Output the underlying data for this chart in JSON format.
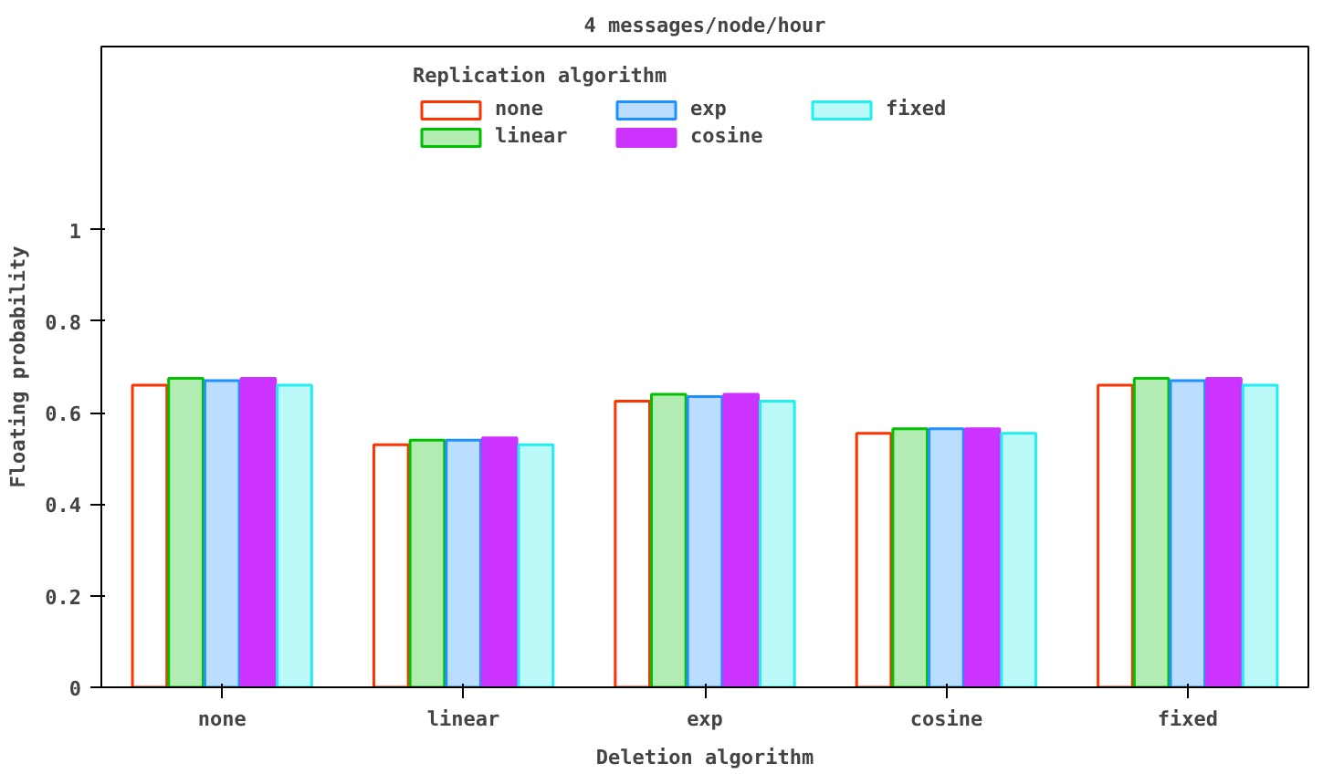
{
  "chart_data": {
    "type": "bar",
    "title": "4 messages/node/hour",
    "xlabel": "Deletion algorithm",
    "ylabel": "Floating probability",
    "legend_title": "Replication algorithm",
    "categories": [
      "none",
      "linear",
      "exp",
      "cosine",
      "fixed"
    ],
    "series": [
      {
        "name": "none",
        "color": "#ff3300",
        "values": [
          0.66,
          0.53,
          0.625,
          0.555,
          0.66
        ]
      },
      {
        "name": "linear",
        "color": "#00c000",
        "values": [
          0.675,
          0.54,
          0.64,
          0.565,
          0.675
        ]
      },
      {
        "name": "exp",
        "color": "#1e90ff",
        "values": [
          0.67,
          0.54,
          0.635,
          0.565,
          0.67
        ]
      },
      {
        "name": "cosine",
        "color": "#cc33ff",
        "values": [
          0.675,
          0.545,
          0.64,
          0.565,
          0.675
        ]
      },
      {
        "name": "fixed",
        "color": "#22eeee",
        "values": [
          0.66,
          0.53,
          0.625,
          0.555,
          0.66
        ]
      }
    ],
    "ylim": [
      0,
      1.4
    ],
    "yticks": [
      0,
      {
        "value": 0.2,
        "label": "0.2"
      },
      {
        "value": 0.4,
        "label": "0.4"
      },
      {
        "value": 0.6,
        "label": "0.6"
      },
      {
        "value": 0.8,
        "label": "0.8"
      },
      1
    ],
    "grid": false,
    "legend": "top"
  }
}
